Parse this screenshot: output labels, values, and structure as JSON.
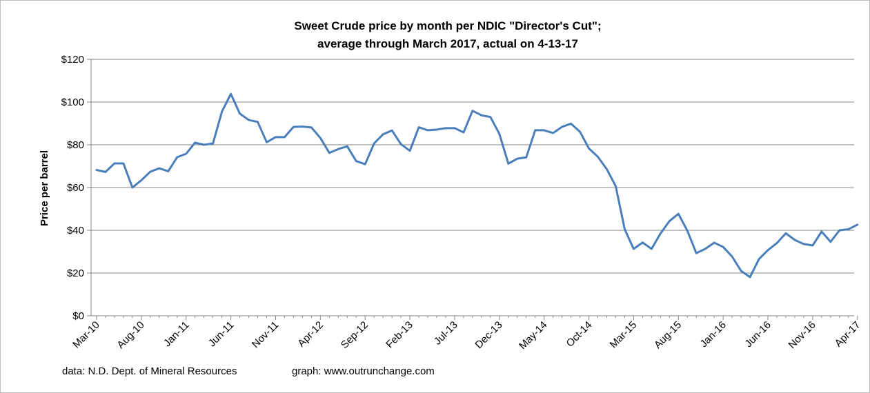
{
  "chart_data": {
    "type": "line",
    "title": "Sweet Crude price by month per NDIC \"Director's Cut\";",
    "subtitle": "average through March 2017, actual on  4-13-17",
    "xlabel": "",
    "ylabel": "Price per barrel",
    "ylim": [
      0,
      120
    ],
    "y_ticks": [
      "$0",
      "$20",
      "$40",
      "$60",
      "$80",
      "$100",
      "$120"
    ],
    "x_tick_labels": [
      "Mar-10",
      "Aug-10",
      "Jan-11",
      "Jun-11",
      "Nov-11",
      "Apr-12",
      "Sep-12",
      "Feb-13",
      "Jul-13",
      "Dec-13",
      "May-14",
      "Oct-14",
      "Mar-15",
      "Aug-15",
      "Jan-16",
      "Jun-16",
      "Nov-16",
      "Apr-17"
    ],
    "grid": "horizontal",
    "legend": "none",
    "series": [
      {
        "color": "#4a7ebb",
        "x": [
          "Mar-10",
          "Apr-10",
          "May-10",
          "Jun-10",
          "Jul-10",
          "Aug-10",
          "Sep-10",
          "Oct-10",
          "Nov-10",
          "Dec-10",
          "Jan-11",
          "Feb-11",
          "Mar-11",
          "Apr-11",
          "May-11",
          "Jun-11",
          "Jul-11",
          "Aug-11",
          "Sep-11",
          "Oct-11",
          "Nov-11",
          "Dec-11",
          "Jan-12",
          "Feb-12",
          "Mar-12",
          "Apr-12",
          "May-12",
          "Jun-12",
          "Jul-12",
          "Aug-12",
          "Sep-12",
          "Oct-12",
          "Nov-12",
          "Dec-12",
          "Jan-13",
          "Feb-13",
          "Mar-13",
          "Apr-13",
          "May-13",
          "Jun-13",
          "Jul-13",
          "Aug-13",
          "Sep-13",
          "Oct-13",
          "Nov-13",
          "Dec-13",
          "Jan-14",
          "Feb-14",
          "Mar-14",
          "Apr-14",
          "May-14",
          "Jun-14",
          "Jul-14",
          "Aug-14",
          "Sep-14",
          "Oct-14",
          "Nov-14",
          "Dec-14",
          "Jan-15",
          "Feb-15",
          "Mar-15",
          "Apr-15",
          "May-15",
          "Jun-15",
          "Jul-15",
          "Aug-15",
          "Sep-15",
          "Oct-15",
          "Nov-15",
          "Dec-15",
          "Jan-16",
          "Feb-16",
          "Mar-16",
          "Apr-16",
          "May-16",
          "Jun-16",
          "Jul-16",
          "Aug-16",
          "Sep-16",
          "Oct-16",
          "Nov-16",
          "Dec-16",
          "Jan-17",
          "Feb-17",
          "Mar-17",
          "Apr-17"
        ],
        "values": [
          68.2,
          67.3,
          71.3,
          71.3,
          60.0,
          63.4,
          67.4,
          69.0,
          67.6,
          74.2,
          75.8,
          81.0,
          80.0,
          80.6,
          95.5,
          103.8,
          94.6,
          91.6,
          90.7,
          81.2,
          83.6,
          83.6,
          88.4,
          88.5,
          88.1,
          83.2,
          76.2,
          78.0,
          79.3,
          72.4,
          70.9,
          80.6,
          84.9,
          86.7,
          80.3,
          77.2,
          88.2,
          86.8,
          87.1,
          87.8,
          87.8,
          85.8,
          95.9,
          93.8,
          93.0,
          85.1,
          71.2,
          73.5,
          74.1,
          86.8,
          86.8,
          85.5,
          88.4,
          89.9,
          86.1,
          78.3,
          74.4,
          68.6,
          60.6,
          40.5,
          31.3,
          34.3,
          31.3,
          38.5,
          44.3,
          47.7,
          39.8,
          29.3,
          31.3,
          34.2,
          32.2,
          27.7,
          21.0,
          18.1,
          26.5,
          30.7,
          34.0,
          38.6,
          35.5,
          33.6,
          32.9,
          39.4,
          34.6,
          40.0,
          40.5,
          42.6
        ]
      }
    ]
  },
  "footer": {
    "source": "data: N.D. Dept. of Mineral Resources",
    "credit": "graph:  www.outrunchange.com"
  }
}
